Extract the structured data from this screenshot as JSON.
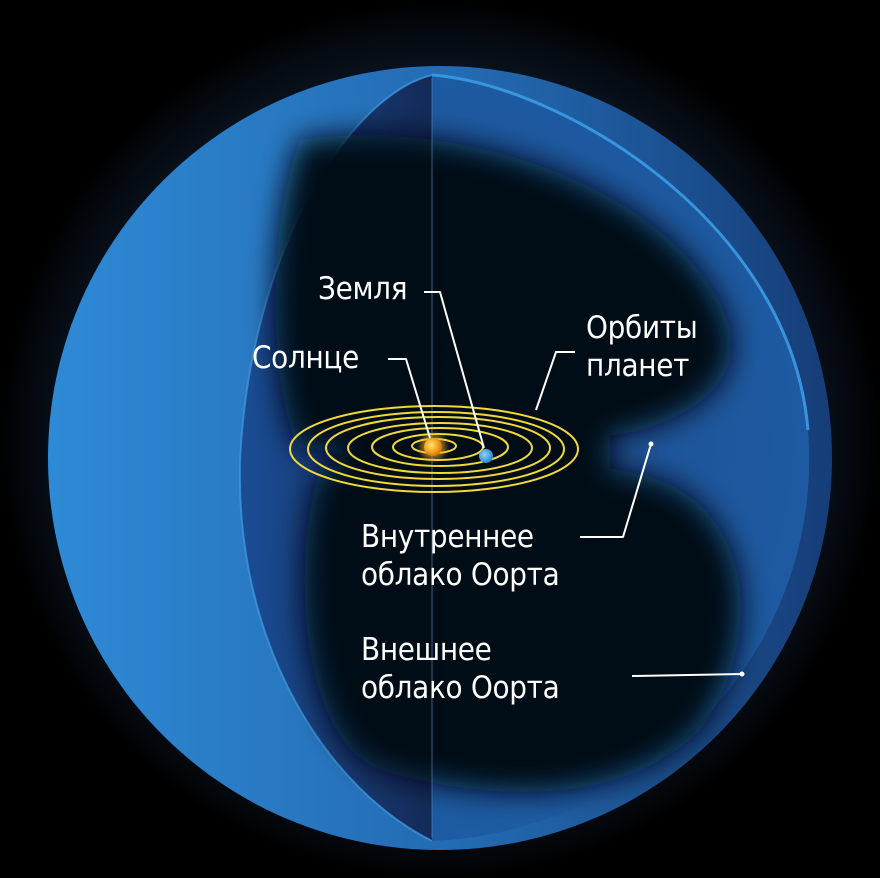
{
  "colors": {
    "background": "#000000",
    "sphere_light": "#2a7cc4",
    "sphere_dark": "#14284f",
    "cavity": "#030812",
    "orbit": "#f0d93a",
    "sun": "#f5a623",
    "earth": "#3ba4e6",
    "label": "#ffffff"
  },
  "labels": {
    "earth": "Земля",
    "sun": "Солнце",
    "orbits": [
      "Орбиты",
      "планет"
    ],
    "inner_cloud": [
      "Внутреннее",
      "облако Оорта"
    ],
    "outer_cloud": [
      "Внешнее",
      "облако Оорта"
    ]
  },
  "diagram": {
    "orbit_count": 7,
    "icons": [
      "sun-icon",
      "earth-icon"
    ]
  }
}
